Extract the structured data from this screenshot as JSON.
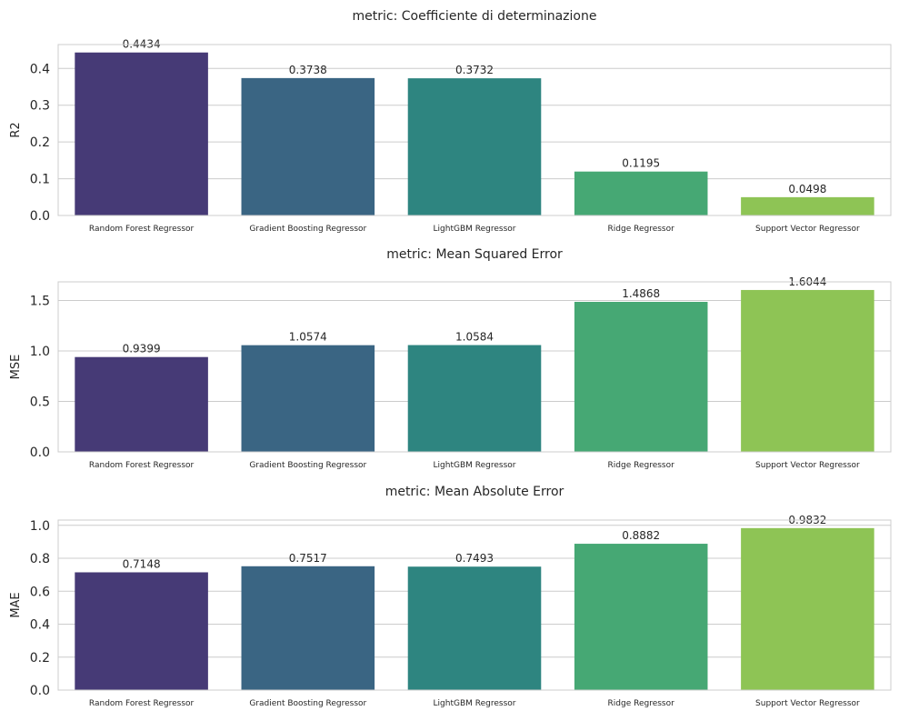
{
  "chart_data": [
    {
      "type": "bar",
      "title": "metric: Coefficiente di determinazione",
      "ylabel": "R2",
      "xlabel": "",
      "categories": [
        "Random Forest Regressor",
        "Gradient Boosting Regressor",
        "LightGBM Regressor",
        "Ridge Regressor",
        "Support Vector Regressor"
      ],
      "values": [
        0.4434,
        0.3738,
        0.3732,
        0.1195,
        0.0498
      ],
      "data_labels": [
        "0.4434",
        "0.3738",
        "0.3732",
        "0.1195",
        "0.0498"
      ],
      "ylim": [
        0,
        0.465
      ],
      "yticks": [
        0.0,
        0.1,
        0.2,
        0.3,
        0.4
      ],
      "ytick_labels": [
        "0.0",
        "0.1",
        "0.2",
        "0.3",
        "0.4"
      ],
      "grid": true
    },
    {
      "type": "bar",
      "title": "metric: Mean Squared Error",
      "ylabel": "MSE",
      "xlabel": "",
      "categories": [
        "Random Forest Regressor",
        "Gradient Boosting Regressor",
        "LightGBM Regressor",
        "Ridge Regressor",
        "Support Vector Regressor"
      ],
      "values": [
        0.9399,
        1.0574,
        1.0584,
        1.4868,
        1.6044
      ],
      "data_labels": [
        "0.9399",
        "1.0574",
        "1.0584",
        "1.4868",
        "1.6044"
      ],
      "ylim": [
        0,
        1.685
      ],
      "yticks": [
        0.0,
        0.5,
        1.0,
        1.5
      ],
      "ytick_labels": [
        "0.0",
        "0.5",
        "1.0",
        "1.5"
      ],
      "grid": true
    },
    {
      "type": "bar",
      "title": "metric: Mean Absolute Error",
      "ylabel": "MAE",
      "xlabel": "",
      "categories": [
        "Random Forest Regressor",
        "Gradient Boosting Regressor",
        "LightGBM Regressor",
        "Ridge Regressor",
        "Support Vector Regressor"
      ],
      "values": [
        0.7148,
        0.7517,
        0.7493,
        0.8882,
        0.9832
      ],
      "data_labels": [
        "0.7148",
        "0.7517",
        "0.7493",
        "0.8882",
        "0.9832"
      ],
      "ylim": [
        0,
        1.032
      ],
      "yticks": [
        0.0,
        0.2,
        0.4,
        0.6,
        0.8,
        1.0
      ],
      "ytick_labels": [
        "0.0",
        "0.2",
        "0.4",
        "0.6",
        "0.8",
        "1.0"
      ],
      "grid": true
    }
  ],
  "colors": {
    "bars": [
      "#463a76",
      "#3a6583",
      "#2e8580",
      "#46a874",
      "#8ec455"
    ],
    "grid": "#cccccc",
    "frame": "#cccccc",
    "text": "#262626"
  }
}
